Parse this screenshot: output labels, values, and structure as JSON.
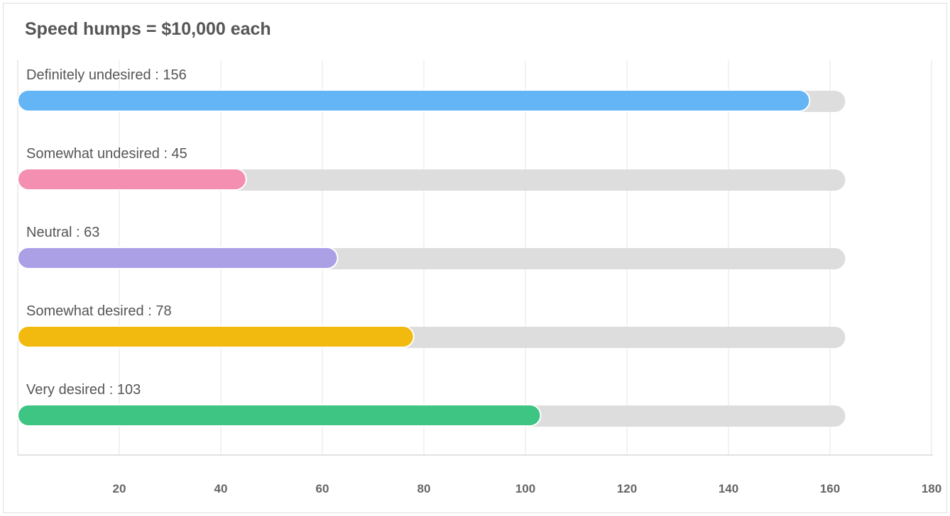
{
  "chart_data": {
    "type": "bar",
    "orientation": "horizontal",
    "title": "Speed humps = $10,000 each",
    "categories": [
      "Definitely undesired",
      "Somewhat undesired",
      "Neutral",
      "Somewhat desired",
      "Very desired"
    ],
    "values": [
      156,
      45,
      63,
      78,
      103
    ],
    "track_max": 163,
    "colors": [
      "#64b5f6",
      "#f48fb1",
      "#ab9fe6",
      "#f2b90f",
      "#3ec483"
    ],
    "track_color": "#dddddd",
    "xlim": [
      0,
      180
    ],
    "xticks": [
      20,
      40,
      60,
      80,
      100,
      120,
      140,
      160,
      180
    ],
    "grid": true,
    "xlabel": "",
    "ylabel": ""
  }
}
